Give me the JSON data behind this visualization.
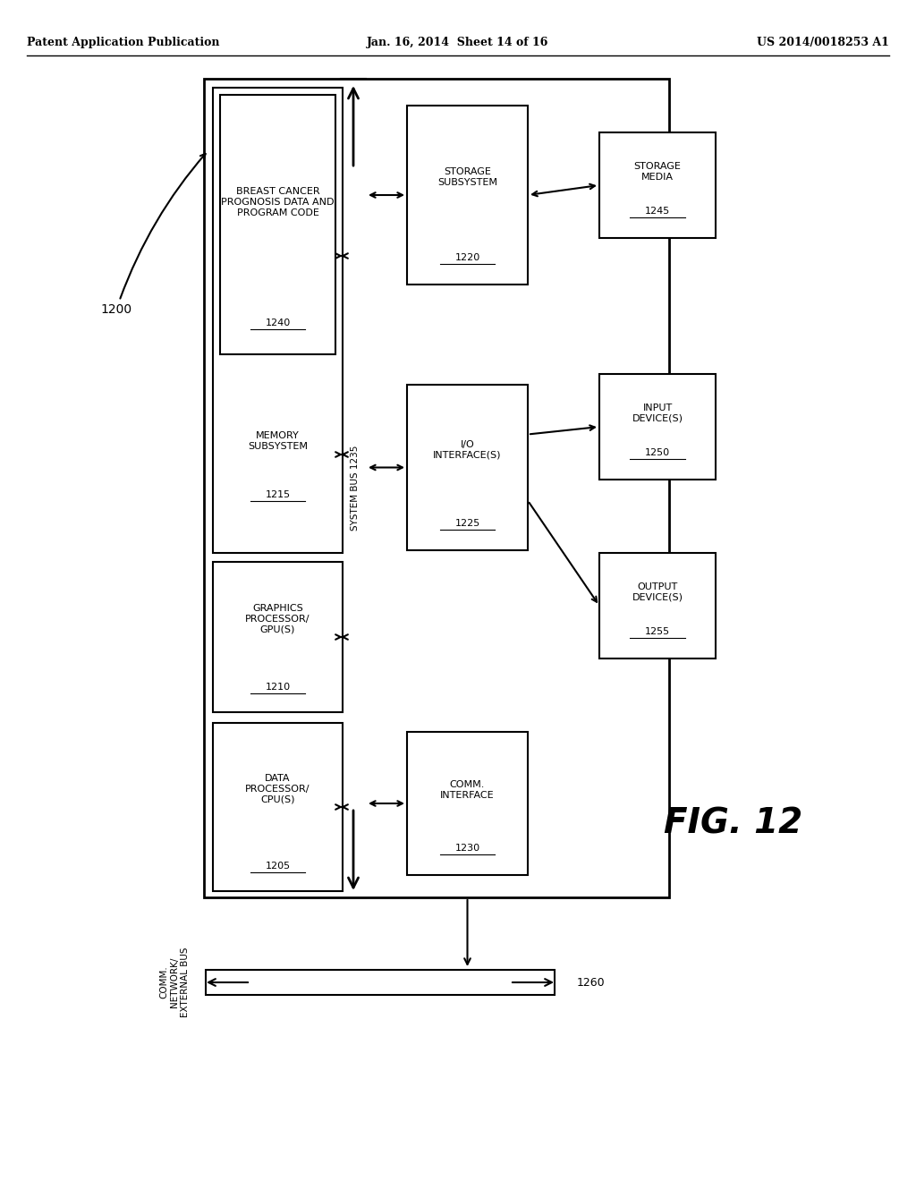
{
  "bg_color": "#ffffff",
  "header_left": "Patent Application Publication",
  "header_center": "Jan. 16, 2014  Sheet 14 of 16",
  "header_right": "US 2014/0018253 A1",
  "fig_label": "FIG. 12",
  "line_color": "#000000",
  "text_color": "#000000"
}
